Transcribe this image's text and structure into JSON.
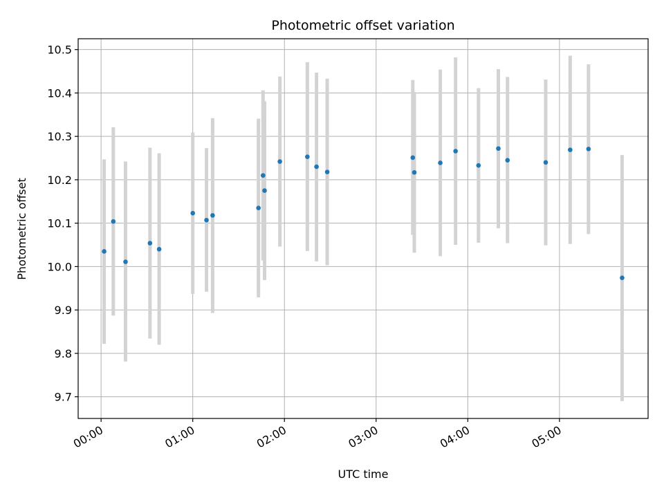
{
  "chart_data": {
    "type": "scatter",
    "title": "Photometric offset variation",
    "xlabel": "UTC time",
    "ylabel": "Photometric offset",
    "x_ticks": [
      "00:00",
      "01:00",
      "02:00",
      "03:00",
      "04:00",
      "05:00"
    ],
    "y_ticks": [
      "9.7",
      "9.8",
      "9.9",
      "10.0",
      "10.1",
      "10.2",
      "10.3",
      "10.4",
      "10.5"
    ],
    "xlim": [
      "23:45",
      "05:58"
    ],
    "ylim": [
      9.65,
      10.525
    ],
    "grid": true,
    "colors": {
      "point": "#1f77b4",
      "errorbar": "#d3d3d3",
      "grid": "#b0b0b0"
    },
    "points": [
      {
        "x": "00:02",
        "y": 10.035,
        "lo": 9.822,
        "hi": 10.247
      },
      {
        "x": "00:08",
        "y": 10.104,
        "lo": 9.887,
        "hi": 10.321
      },
      {
        "x": "00:16",
        "y": 10.011,
        "lo": 9.781,
        "hi": 10.242
      },
      {
        "x": "00:32",
        "y": 10.054,
        "lo": 9.834,
        "hi": 10.274
      },
      {
        "x": "00:38",
        "y": 10.04,
        "lo": 9.82,
        "hi": 10.261
      },
      {
        "x": "01:00",
        "y": 10.123,
        "lo": 9.937,
        "hi": 10.309
      },
      {
        "x": "01:09",
        "y": 10.107,
        "lo": 9.942,
        "hi": 10.273
      },
      {
        "x": "01:13",
        "y": 10.118,
        "lo": 9.893,
        "hi": 10.342
      },
      {
        "x": "01:43",
        "y": 10.135,
        "lo": 9.929,
        "hi": 10.341
      },
      {
        "x": "01:46",
        "y": 10.21,
        "lo": 10.014,
        "hi": 10.406
      },
      {
        "x": "01:47",
        "y": 10.175,
        "lo": 9.969,
        "hi": 10.381
      },
      {
        "x": "01:57",
        "y": 10.242,
        "lo": 10.046,
        "hi": 10.438
      },
      {
        "x": "02:15",
        "y": 10.253,
        "lo": 10.036,
        "hi": 10.471
      },
      {
        "x": "02:21",
        "y": 10.23,
        "lo": 10.012,
        "hi": 10.447
      },
      {
        "x": "02:28",
        "y": 10.218,
        "lo": 10.003,
        "hi": 10.433
      },
      {
        "x": "03:24",
        "y": 10.251,
        "lo": 10.073,
        "hi": 10.43
      },
      {
        "x": "03:25",
        "y": 10.217,
        "lo": 10.032,
        "hi": 10.402
      },
      {
        "x": "03:42",
        "y": 10.239,
        "lo": 10.024,
        "hi": 10.454
      },
      {
        "x": "03:52",
        "y": 10.266,
        "lo": 10.05,
        "hi": 10.482
      },
      {
        "x": "04:07",
        "y": 10.233,
        "lo": 10.055,
        "hi": 10.411
      },
      {
        "x": "04:20",
        "y": 10.272,
        "lo": 10.088,
        "hi": 10.455
      },
      {
        "x": "04:26",
        "y": 10.245,
        "lo": 10.054,
        "hi": 10.437
      },
      {
        "x": "04:51",
        "y": 10.24,
        "lo": 10.049,
        "hi": 10.431
      },
      {
        "x": "05:07",
        "y": 10.269,
        "lo": 10.052,
        "hi": 10.486
      },
      {
        "x": "05:19",
        "y": 10.271,
        "lo": 10.075,
        "hi": 10.466
      },
      {
        "x": "05:41",
        "y": 9.974,
        "lo": 9.69,
        "hi": 10.257
      }
    ]
  }
}
